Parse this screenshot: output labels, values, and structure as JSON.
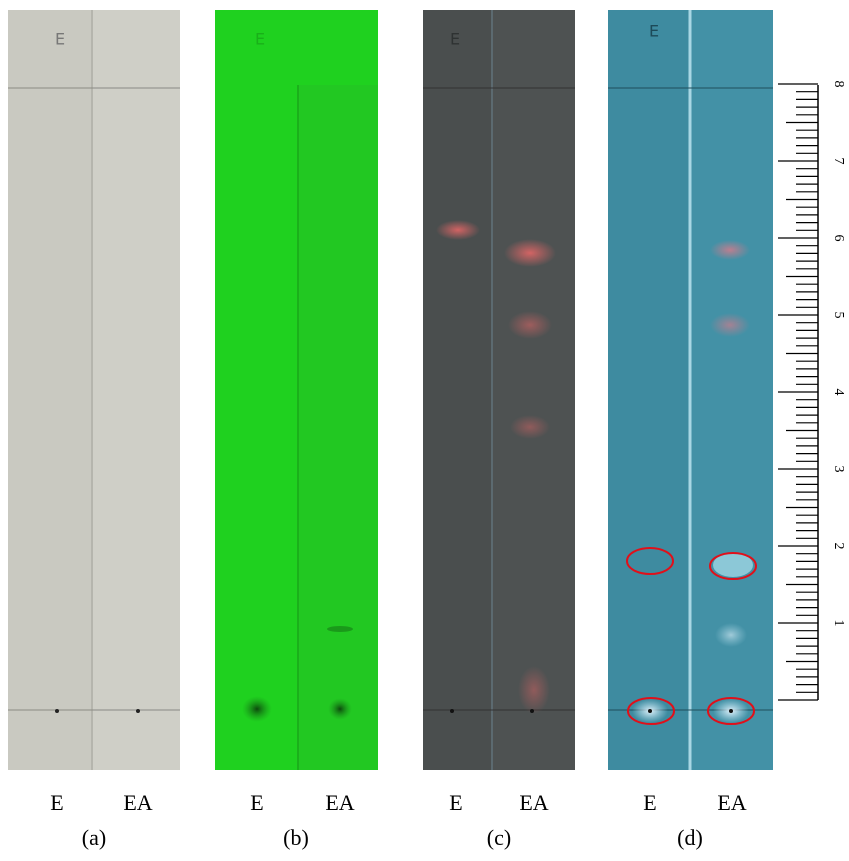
{
  "panels": [
    {
      "label": "(a)",
      "plate_mark": "E",
      "lanes": [
        "E",
        "EA"
      ]
    },
    {
      "label": "(b)",
      "plate_mark": "E",
      "lanes": [
        "E",
        "EA"
      ]
    },
    {
      "label": "(c)",
      "plate_mark": "E",
      "lanes": [
        "E",
        "EA"
      ]
    },
    {
      "label": "(d)",
      "plate_mark": "E",
      "lanes": [
        "E",
        "EA"
      ]
    }
  ],
  "ruler": {
    "labels": [
      "1",
      "2",
      "3",
      "4",
      "5",
      "6",
      "7",
      "8"
    ]
  }
}
